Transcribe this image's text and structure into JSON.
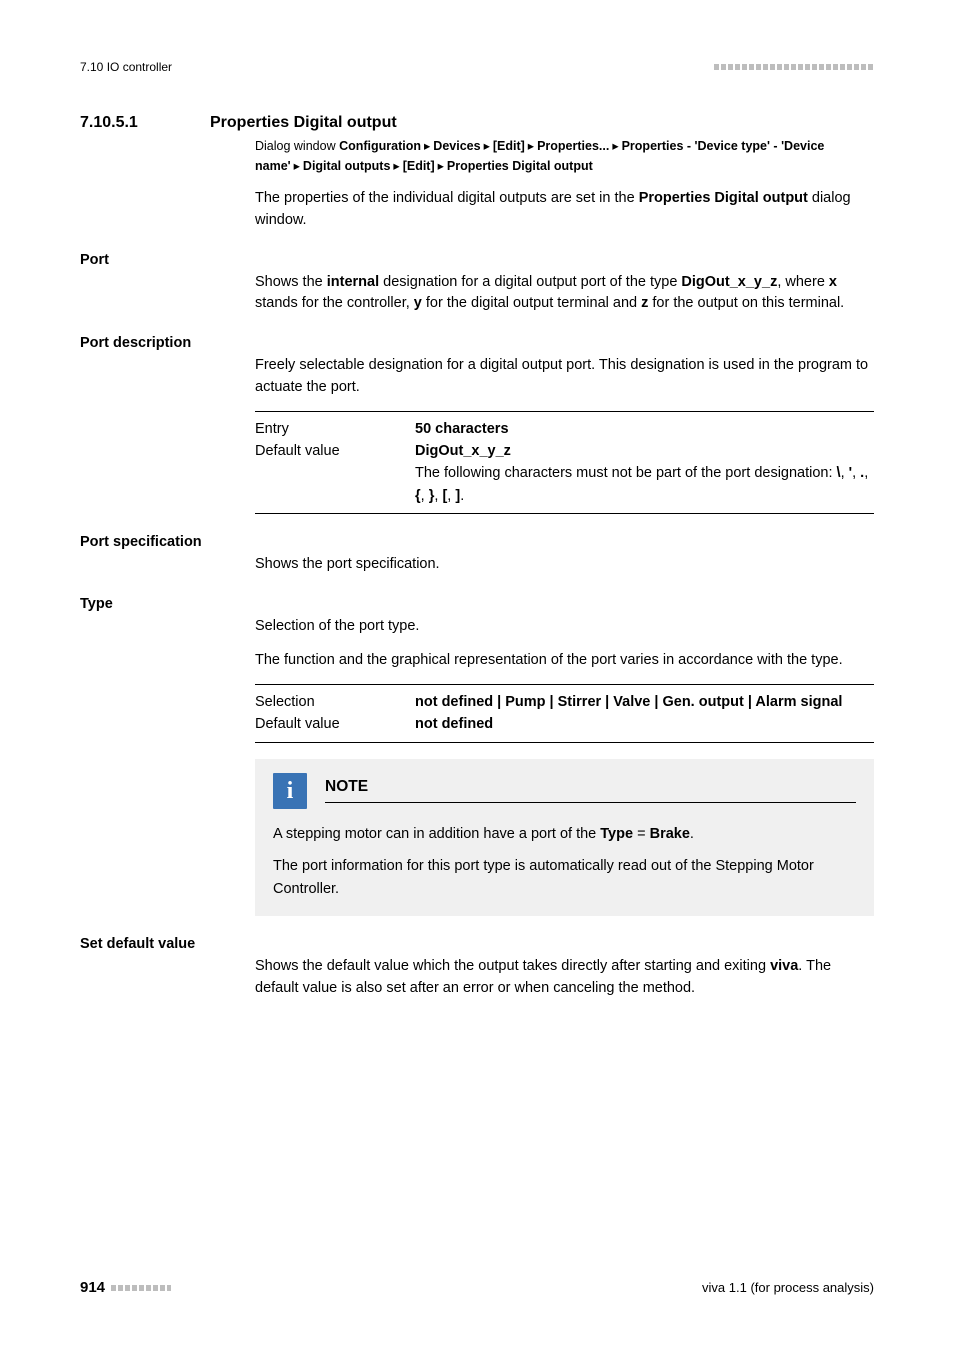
{
  "header": {
    "left": "7.10 IO controller"
  },
  "section": {
    "number": "7.10.5.1",
    "title": "Properties Digital output"
  },
  "breadcrumb": {
    "prefix": "Dialog window ",
    "parts": [
      "Configuration",
      "Devices",
      "[Edit]",
      "Properties...",
      "Properties - 'Device type' - 'Device name'",
      "Digital outputs",
      "[Edit]",
      "Properties Digital output"
    ]
  },
  "intro": {
    "p1a": "The properties of the individual digital outputs are set in the ",
    "p1b": "Properties Digital output",
    "p1c": " dialog window."
  },
  "port": {
    "heading": "Port",
    "t1": "Shows the ",
    "t2": "internal",
    "t3": " designation for a digital output port of the type ",
    "t4": "DigOut_x_y_z",
    "t5": ", where ",
    "t6": "x",
    "t7": " stands for the controller, ",
    "t8": "y",
    "t9": " for the digital output terminal and ",
    "t10": "z",
    "t11": " for the output on this terminal."
  },
  "port_description": {
    "heading": "Port description",
    "body": "Freely selectable designation for a digital output port. This designation is used in the program to actuate the port.",
    "entry_label": "Entry",
    "entry_value": "50 characters",
    "default_label": "Default value",
    "default_value": "DigOut_x_y_z",
    "extra_a": "The following characters must not be part of the port designation: ",
    "extra_b": "\\",
    "extra_c": ", ",
    "extra_d": "'",
    "extra_e": ", ",
    "extra_f": ".",
    "extra_g": ", ",
    "extra_h": "{",
    "extra_i": ", ",
    "extra_j": "}",
    "extra_k": ", ",
    "extra_l": "[",
    "extra_m": ", ",
    "extra_n": "]",
    "extra_o": "."
  },
  "port_specification": {
    "heading": "Port specification",
    "body": "Shows the port specification."
  },
  "type": {
    "heading": "Type",
    "body1": "Selection of the port type.",
    "body2": "The function and the graphical representation of the port varies in accordance with the type.",
    "selection_label": "Selection",
    "selection_value": "not defined | Pump | Stirrer | Valve | Gen. output | Alarm signal",
    "default_label": "Default value",
    "default_value": "not defined"
  },
  "note": {
    "title": "NOTE",
    "p1a": "A stepping motor can in addition have a port of the ",
    "p1b": "Type",
    "p1c": " = ",
    "p1d": "Brake",
    "p1e": ".",
    "p2": "The port information for this port type is automatically read out of the Stepping Motor Controller."
  },
  "set_default": {
    "heading": "Set default value",
    "t1": "Shows the default value which the output takes directly after starting and exiting ",
    "t2": "viva",
    "t3": ". The default value is also set after an error or when canceling the method."
  },
  "footer": {
    "page": "914",
    "right": "viva 1.1 (for process analysis)"
  }
}
